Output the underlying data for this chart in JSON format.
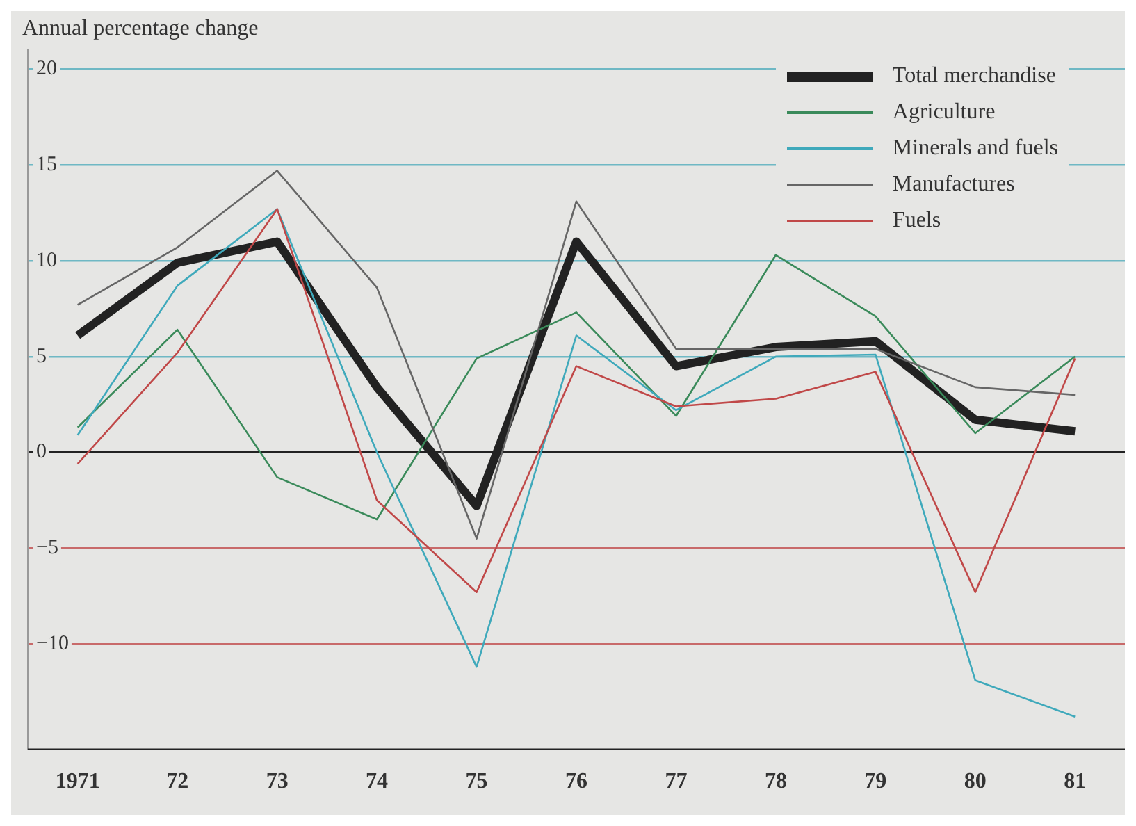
{
  "chart_data": {
    "type": "line",
    "ylabel": "Annual percentage change",
    "categories": [
      "1971",
      "72",
      "73",
      "74",
      "75",
      "76",
      "77",
      "78",
      "79",
      "80",
      "81"
    ],
    "series": [
      {
        "name": "Total merchandise",
        "color": "#222222",
        "values": [
          6.1,
          9.9,
          11.0,
          3.4,
          -2.8,
          11.0,
          4.5,
          5.5,
          5.8,
          1.7,
          1.1
        ]
      },
      {
        "name": "Agriculture",
        "color": "#3a8a5a",
        "values": [
          1.3,
          6.4,
          -1.3,
          -3.5,
          4.9,
          7.3,
          1.9,
          10.3,
          7.1,
          1.0,
          5.0
        ]
      },
      {
        "name": "Minerals and fuels",
        "color": "#3fa9bb",
        "values": [
          0.9,
          8.7,
          12.7,
          0.0,
          -11.2,
          6.1,
          2.2,
          5.0,
          5.1,
          -11.9,
          -13.8
        ]
      },
      {
        "name": "Manufactures",
        "color": "#666666",
        "values": [
          7.7,
          10.7,
          14.7,
          8.6,
          -4.5,
          13.1,
          5.4,
          5.4,
          5.4,
          3.4,
          3.0
        ]
      },
      {
        "name": "Fuels",
        "color": "#c04848",
        "values": [
          -0.6,
          5.2,
          12.7,
          -2.5,
          -7.3,
          4.5,
          2.4,
          2.8,
          4.2,
          -7.3,
          4.9
        ]
      }
    ],
    "ylim": [
      -15.5,
      21
    ],
    "yticks": [
      -10,
      -5,
      0,
      5,
      10,
      15,
      20
    ],
    "grid": "y",
    "legend": "top right",
    "marker": "none",
    "line_style": "solid"
  }
}
